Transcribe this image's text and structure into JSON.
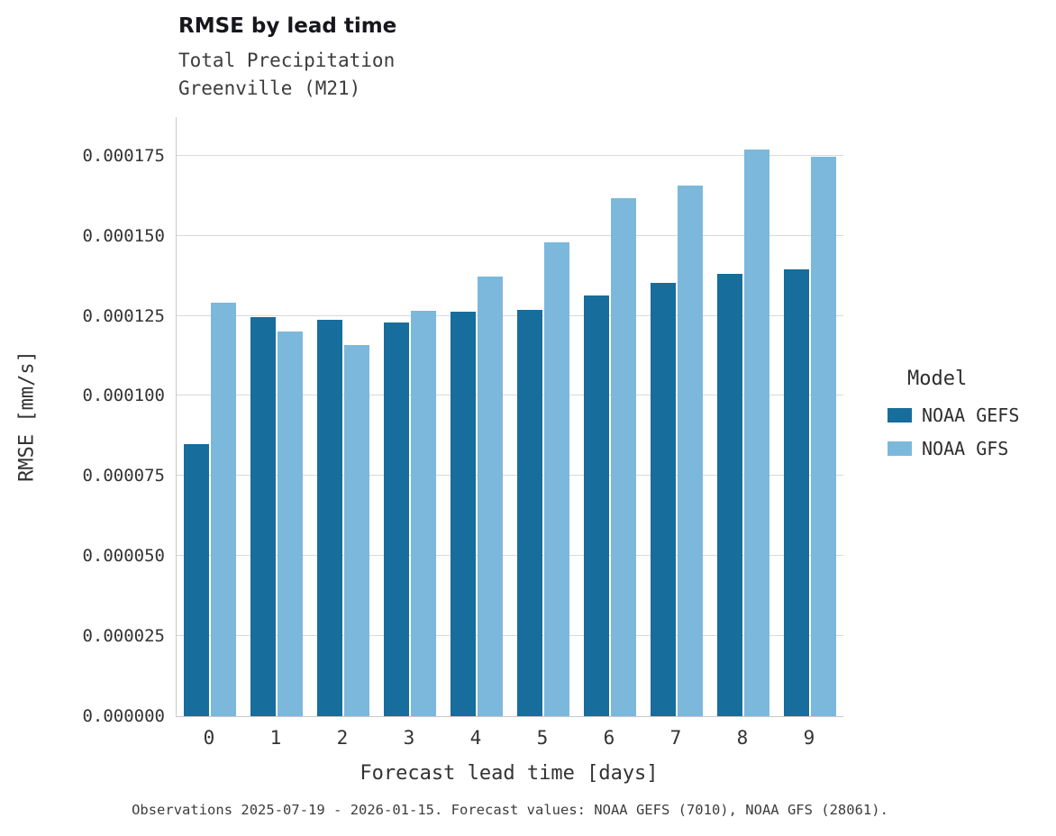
{
  "header": {
    "title": "RMSE by lead time",
    "subtitle": "Total Precipitation\nGreenville (M21)"
  },
  "axes": {
    "xlabel": "Forecast lead time [days]",
    "ylabel": "RMSE [mm/s]"
  },
  "legend": {
    "title": "Model",
    "entries": [
      {
        "label": "NOAA GEFS",
        "color": "#176d9c"
      },
      {
        "label": "NOAA GFS",
        "color": "#7bb8dc"
      }
    ]
  },
  "caption": "Observations 2025-07-19 - 2026-01-15. Forecast values: NOAA GEFS (7010), NOAA GFS (28061).",
  "chart_data": {
    "type": "bar",
    "title": "RMSE by lead time",
    "subtitle": "Total Precipitation Greenville (M21)",
    "xlabel": "Forecast lead time [days]",
    "ylabel": "RMSE [mm/s]",
    "categories": [
      "0",
      "1",
      "2",
      "3",
      "4",
      "5",
      "6",
      "7",
      "8",
      "9"
    ],
    "series": [
      {
        "name": "NOAA GEFS",
        "color": "#176d9c",
        "values": [
          8.5e-05,
          0.0001245,
          0.0001238,
          0.000123,
          0.0001262,
          0.0001268,
          0.0001312,
          0.0001352,
          0.0001382,
          0.0001395
        ]
      },
      {
        "name": "NOAA GFS",
        "color": "#7bb8dc",
        "values": [
          0.000129,
          0.00012,
          0.0001158,
          0.0001265,
          0.0001372,
          0.0001478,
          0.0001618,
          0.0001656,
          0.000177,
          0.0001746
        ]
      }
    ],
    "ylim": [
      0,
      0.000187
    ],
    "yticks": [
      0.0,
      2.5e-05,
      5e-05,
      7.5e-05,
      0.0001,
      0.000125,
      0.00015,
      0.000175
    ],
    "ytick_labels": [
      "0.000000",
      "0.000025",
      "0.000050",
      "0.000075",
      "0.000100",
      "0.000125",
      "0.000150",
      "0.000175"
    ],
    "grid": true,
    "legend_position": "right"
  }
}
